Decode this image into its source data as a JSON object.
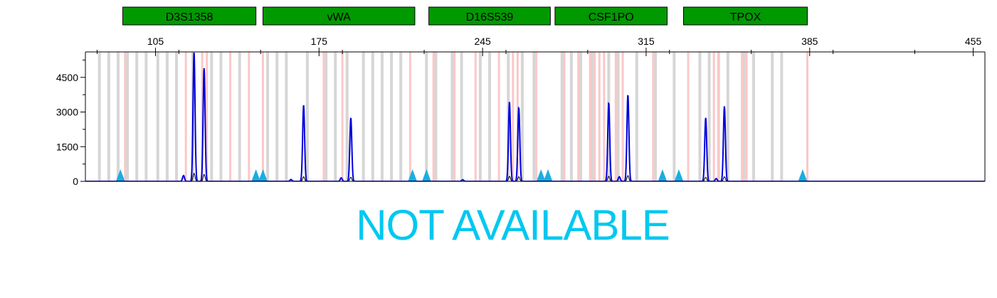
{
  "chart_data": {
    "type": "line",
    "title": "",
    "xlabel": "",
    "ylabel": "",
    "xlim": [
      75,
      460
    ],
    "ylim": [
      0,
      5600
    ],
    "x_ticks": [
      105,
      175,
      245,
      315,
      385,
      455
    ],
    "y_ticks": [
      0,
      1500,
      3000,
      4500
    ],
    "grid": false,
    "loci": [
      {
        "name": "D3S1358",
        "start": 91,
        "end": 148
      },
      {
        "name": "vWA",
        "start": 151,
        "end": 216
      },
      {
        "name": "D16S539",
        "start": 222,
        "end": 274
      },
      {
        "name": "CSF1PO",
        "start": 276,
        "end": 324
      },
      {
        "name": "TPOX",
        "start": 331,
        "end": 384
      }
    ],
    "bins_gray": [
      81,
      85,
      89,
      93,
      97,
      101,
      106,
      110,
      114,
      121,
      129,
      133,
      141,
      153,
      157,
      161,
      170,
      178,
      182,
      187,
      194,
      198,
      202,
      206,
      210,
      221,
      225,
      232,
      236,
      244,
      248,
      256,
      262,
      267,
      279,
      283,
      287,
      292,
      299,
      303,
      311,
      319,
      327,
      338,
      342,
      346,
      350,
      357,
      361,
      369,
      373
    ],
    "bins_pink": [
      92,
      118,
      125,
      127,
      137,
      145,
      151,
      177,
      185,
      214,
      224,
      233,
      242,
      252,
      258,
      260,
      268,
      280,
      286,
      291,
      293,
      295,
      297,
      302,
      305,
      318,
      333,
      344,
      346,
      356,
      358,
      384
    ],
    "series": [
      {
        "color": "#0000dd",
        "peaks": [
          {
            "x": 117,
            "height": 250
          },
          {
            "x": 121.5,
            "height": 5600
          },
          {
            "x": 125.8,
            "height": 4900
          },
          {
            "x": 163,
            "height": 80
          },
          {
            "x": 168.4,
            "height": 3300
          },
          {
            "x": 184.5,
            "height": 150
          },
          {
            "x": 188.6,
            "height": 2750
          },
          {
            "x": 236.5,
            "height": 70
          },
          {
            "x": 256.5,
            "height": 3450
          },
          {
            "x": 260.5,
            "height": 3200
          },
          {
            "x": 299,
            "height": 3400
          },
          {
            "x": 303.5,
            "height": 200
          },
          {
            "x": 307.2,
            "height": 3750
          },
          {
            "x": 340.5,
            "height": 2750
          },
          {
            "x": 345,
            "height": 120
          },
          {
            "x": 348.5,
            "height": 3250
          }
        ]
      },
      {
        "color": "#000000",
        "peaks": [
          {
            "x": 121.5,
            "height": 350
          },
          {
            "x": 125.8,
            "height": 300
          },
          {
            "x": 168.4,
            "height": 200
          },
          {
            "x": 188.6,
            "height": 180
          },
          {
            "x": 256.5,
            "height": 220
          },
          {
            "x": 260.5,
            "height": 200
          },
          {
            "x": 299,
            "height": 220
          },
          {
            "x": 307.2,
            "height": 250
          },
          {
            "x": 340.5,
            "height": 180
          },
          {
            "x": 348.5,
            "height": 200
          }
        ]
      }
    ],
    "markers": [
      90,
      148,
      151,
      215,
      221,
      270,
      273,
      322,
      329,
      382
    ],
    "annotation": "NOT AVAILABLE"
  },
  "colors": {
    "locus_fill": "#009900",
    "bin_gray": "#d6d6d6",
    "bin_pink": "#fbc8c8",
    "marker": "#1aaee0",
    "annotation": "#00c8f0"
  }
}
